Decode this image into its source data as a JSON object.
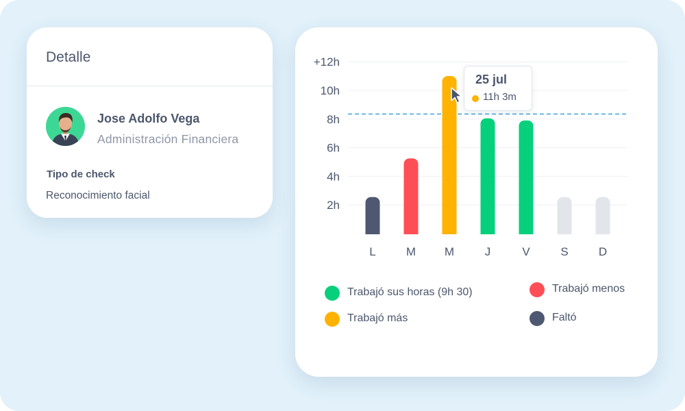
{
  "detail": {
    "title": "Detalle",
    "user": {
      "name": "Jose Adolfo Vega",
      "department": "Administración Financiera"
    },
    "check_type": {
      "label": "Tipo de check",
      "value": "Reconocimiento facial"
    }
  },
  "tooltip": {
    "date": "25 jul",
    "value": "11h 3m"
  },
  "legend": [
    {
      "label": "Trabajó sus horas (9h 30)",
      "color": "#07d07c"
    },
    {
      "label": "Trabajó menos",
      "color": "#ff4e56"
    },
    {
      "label": "Trabajó más",
      "color": "#ffb200"
    },
    {
      "label": "Faltó",
      "color": "#4e5870"
    }
  ],
  "chart_data": {
    "type": "bar",
    "categories": [
      "L",
      "M",
      "M",
      "J",
      "V",
      "S",
      "D"
    ],
    "values": [
      2.6,
      5.3,
      11.05,
      8.1,
      7.95,
      2.6,
      2.6
    ],
    "bar_colors": [
      "#4e5870",
      "#ff4e56",
      "#ffb200",
      "#07d07c",
      "#07d07c",
      "#e2e5ea",
      "#e2e5ea"
    ],
    "y_ticks": [
      {
        "value": 2,
        "label": "2h"
      },
      {
        "value": 4,
        "label": "4h"
      },
      {
        "value": 6,
        "label": "6h"
      },
      {
        "value": 8,
        "label": "8h"
      },
      {
        "value": 10,
        "label": "10h"
      },
      {
        "value": 12,
        "label": "+12h"
      }
    ],
    "reference_line": 8.4,
    "reference_color": "#2d9ce0",
    "ylim": [
      0,
      12
    ],
    "grid": true
  }
}
